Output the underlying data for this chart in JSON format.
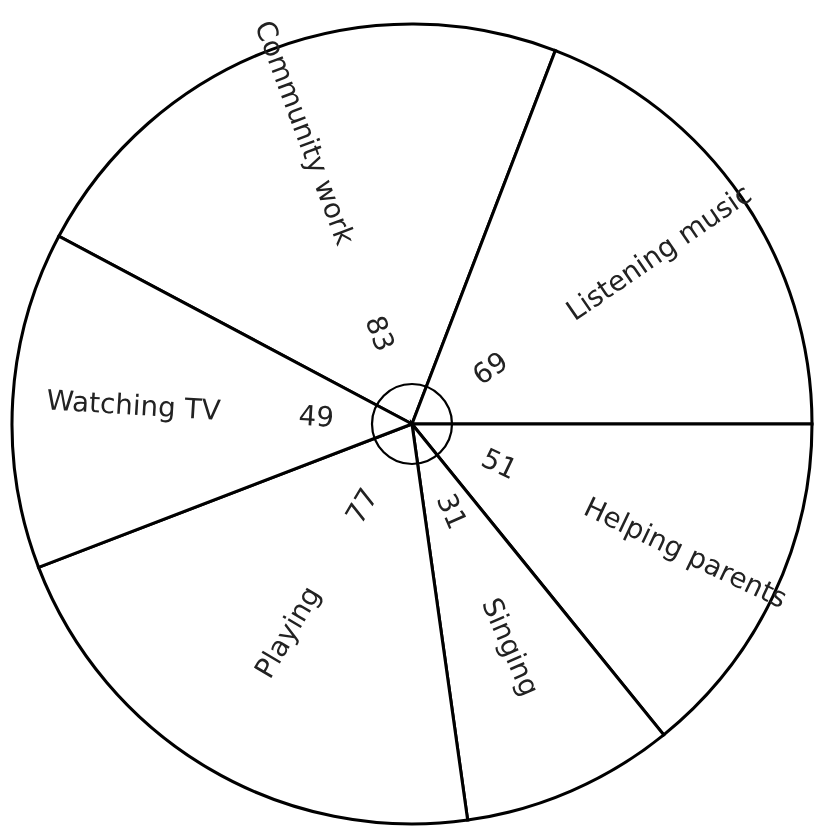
{
  "chart_data": {
    "type": "pie",
    "categories": [
      "Community work",
      "Listening music",
      "Helping parents",
      "Singing",
      "Playing",
      "Watching TV"
    ],
    "values": [
      83,
      69,
      51,
      31,
      77,
      49
    ],
    "colors": [
      "#ffffff",
      "#ffffff",
      "#ffffff",
      "#ffffff",
      "#ffffff",
      "#ffffff"
    ],
    "data_labels": true
  }
}
